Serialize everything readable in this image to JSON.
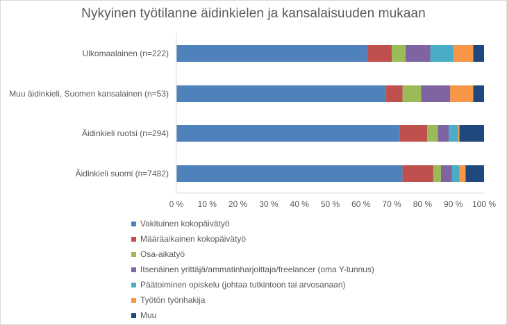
{
  "chart_data": {
    "type": "bar",
    "orientation": "horizontal",
    "stacked": "percent",
    "title": "Nykyinen työtilanne äidinkielen ja kansalaisuuden mukaan",
    "categories": [
      "Ulkomaalainen (n=222)",
      "Muu äidinkieli, Suomen kansalainen (n=53)",
      "Äidinkieli ruotsi (n=294)",
      "Äidinkieli suomi (n=7482)"
    ],
    "series": [
      {
        "name": "Vakituinen kokopäivätyö",
        "color": "#4f81bd",
        "values": [
          62,
          68,
          72.5,
          73.5
        ]
      },
      {
        "name": "Määräaikainen kokopäivätyö",
        "color": "#c0504d",
        "values": [
          8,
          5.5,
          9,
          10
        ]
      },
      {
        "name": "Osa-aikatyö",
        "color": "#9bbb59",
        "values": [
          4.5,
          6,
          3.5,
          2.5
        ]
      },
      {
        "name": "Itsenäinen yrittäjä/ammatinharjoittaja/freelancer (oma Y-tunnus)",
        "color": "#8064a2",
        "values": [
          8,
          9.5,
          3.5,
          3.5
        ]
      },
      {
        "name": "Päätoiminen opiskelu (johtaa tutkintoon tai arvosanaan)",
        "color": "#4bacc6",
        "values": [
          7.5,
          0,
          3,
          2.5
        ]
      },
      {
        "name": "Työtön työnhakija",
        "color": "#f79646",
        "values": [
          6.5,
          7.5,
          0.5,
          2
        ]
      },
      {
        "name": "Muu",
        "color": "#1f497d",
        "values": [
          3.5,
          3.5,
          8,
          6
        ]
      }
    ],
    "x_ticks": [
      "0 %",
      "10 %",
      "20 %",
      "30 %",
      "40 %",
      "50 %",
      "60 %",
      "70 %",
      "80 %",
      "90 %",
      "100 %"
    ],
    "xlim": [
      0,
      100
    ],
    "grid": false,
    "legend_position": "bottom"
  }
}
